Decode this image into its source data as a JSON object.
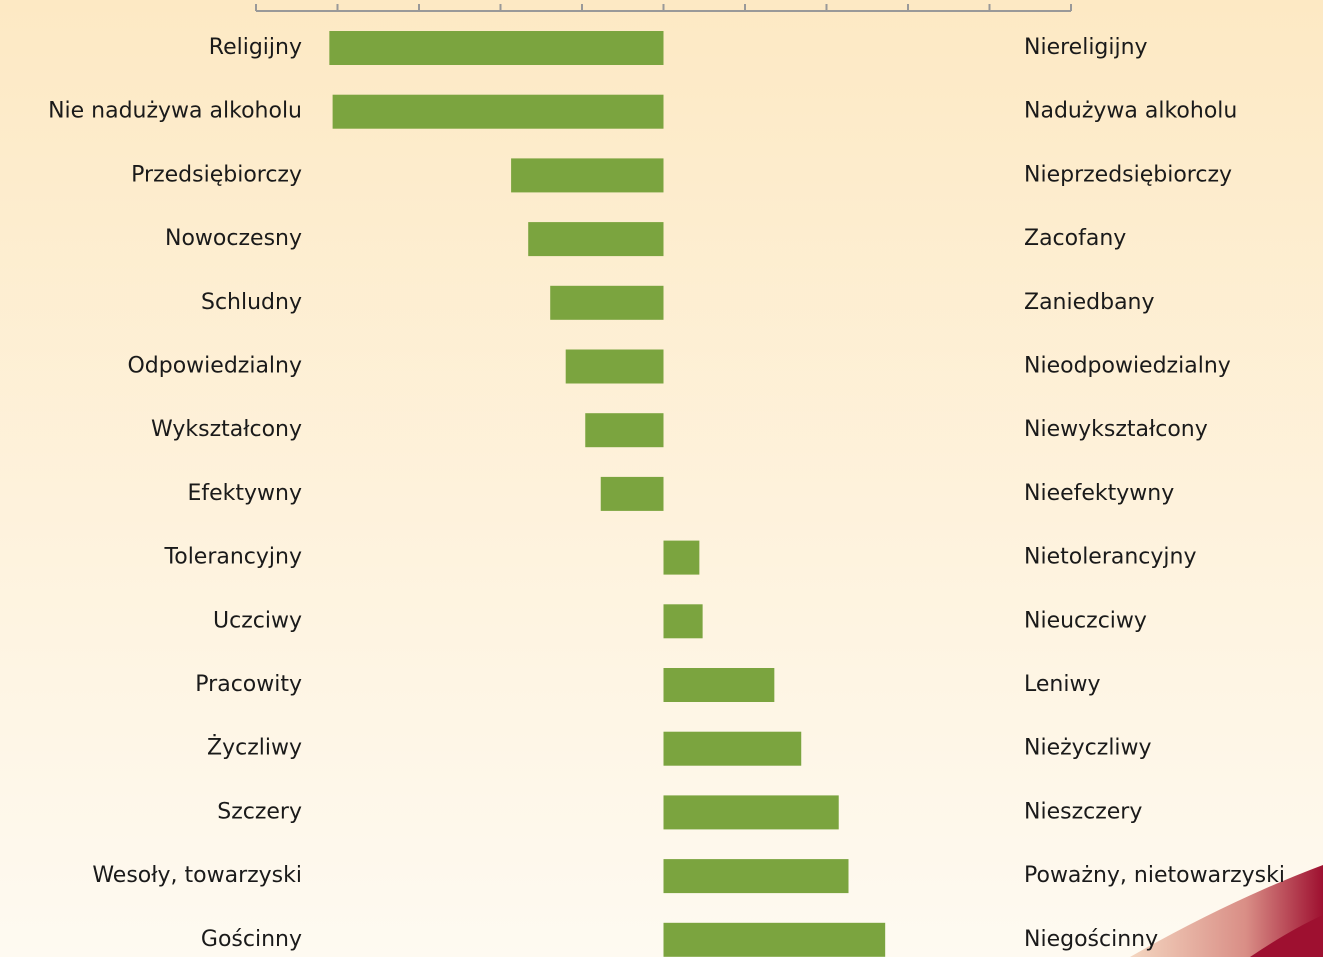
{
  "chart_data": {
    "type": "diverging_bar",
    "categories": [
      "Religijny",
      "Nie nadużywa alkoholu",
      "Przedsiębiorczy",
      "Nowoczesny",
      "Schludny",
      "Odpowiedzialny",
      "Wykształcony",
      "Efektywny",
      "Tolerancyjny",
      "Uczciwy",
      "Pracowity",
      "Życzliwy",
      "Szczery",
      "Wesoły, towarzyski",
      "Gościnny"
    ],
    "opposite_categories": [
      "Niereligijny",
      "Nadużywa alkoholu",
      "Nieprzedsiębiorczy",
      "Zacofany",
      "Zaniedbany",
      "Nieodpowiedzialny",
      "Niewykształcony",
      "Nieefektywny",
      "Nietolerancyjny",
      "Nieuczciwy",
      "Leniwy",
      "Nieżyczliwy",
      "Nieszczery",
      "Poważny, nietowarzyski",
      "Niegościnny"
    ],
    "values": [
      -4.1,
      -4.06,
      -1.87,
      -1.66,
      -1.39,
      -1.2,
      -0.96,
      -0.77,
      0.44,
      0.48,
      1.36,
      1.69,
      2.15,
      2.27,
      2.72
    ],
    "color": "#7ba43f",
    "xlim": [
      -5,
      5
    ],
    "xticks": [
      -5,
      -4,
      -3,
      -2,
      -1,
      0,
      1,
      2,
      3,
      4,
      5
    ]
  }
}
